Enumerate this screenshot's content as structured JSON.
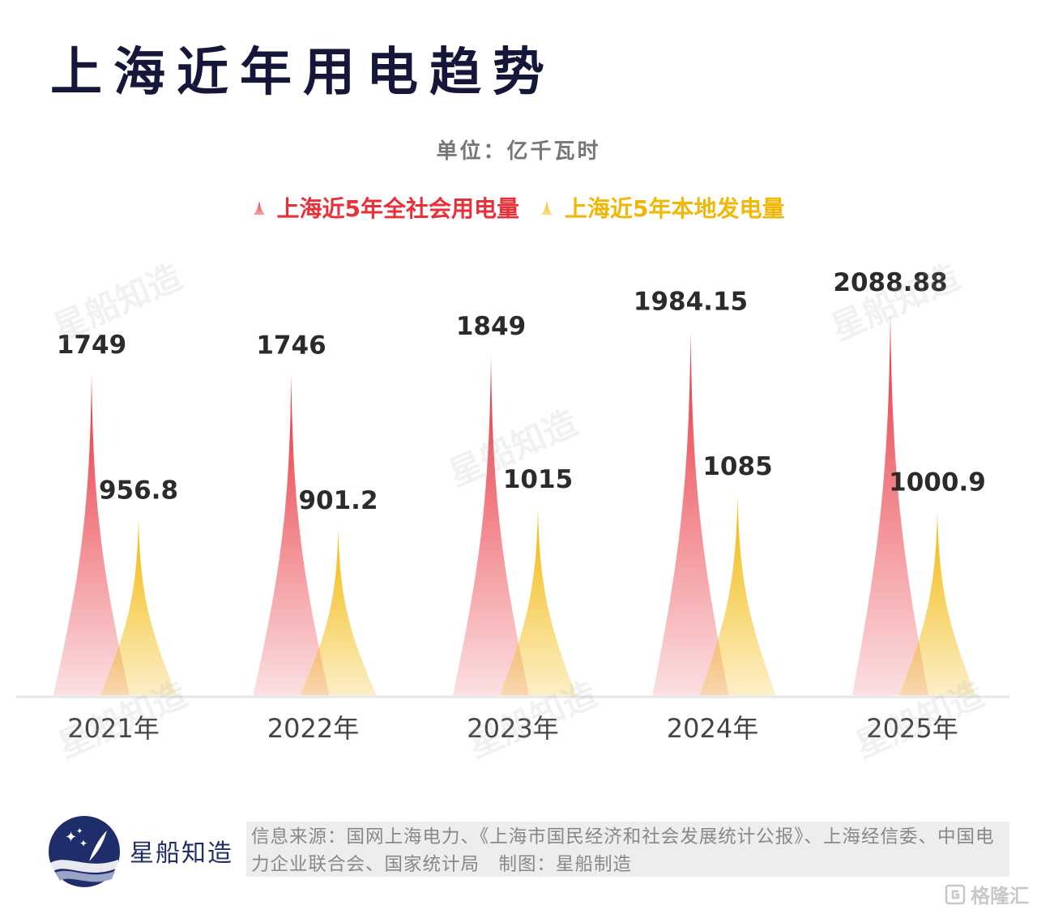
{
  "title": "上海近年用电趋势",
  "unit_label": "单位：亿千瓦时",
  "colors": {
    "red": "#e8303a",
    "yellow": "#f2b705",
    "title": "#14163a",
    "brand": "#1f2d6a"
  },
  "chart_data": {
    "type": "bar",
    "categories": [
      "2021年",
      "2022年",
      "2023年",
      "2024年",
      "2025年"
    ],
    "series": [
      {
        "name": "上海近5年全社会用电量",
        "values": [
          1749,
          1746,
          1849,
          1984.15,
          2088.88
        ],
        "labels": [
          "1749",
          "1746",
          "1849",
          "1984.15",
          "2088.88"
        ],
        "color": "#e8303a"
      },
      {
        "name": "上海近5年本地发电量",
        "values": [
          956.8,
          901.2,
          1015,
          1085,
          1000.9
        ],
        "labels": [
          "956.8",
          "901.2",
          "1015",
          "1085",
          "1000.9"
        ],
        "color": "#f2b705"
      }
    ],
    "ylim": [
      0,
      2300
    ],
    "grid": false,
    "legend": "top-center"
  },
  "watermark_text": "星船知造",
  "footer": {
    "brand": "星船知造",
    "source": "信息来源：国网上海电力、《上海市国民经济和社会发展统计公报》、上海经信委、中国电力企业联合会、国家统计局　制图：星船制造",
    "corner_mark": "格隆汇"
  }
}
